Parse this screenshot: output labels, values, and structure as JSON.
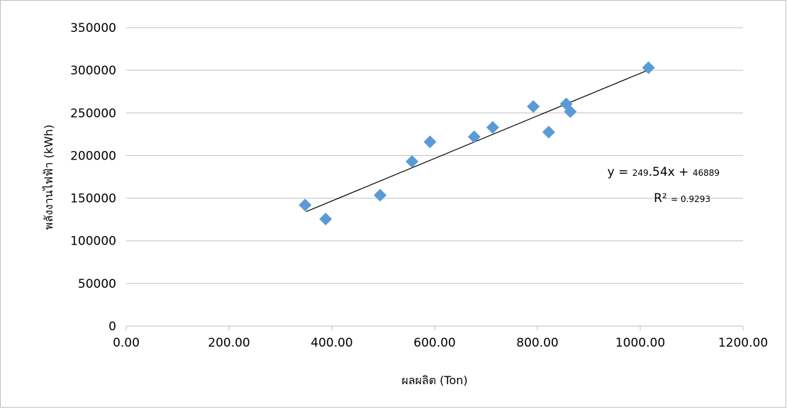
{
  "chart_data": {
    "type": "scatter",
    "xlabel": "ผลผลิต (Ton)",
    "ylabel": "พลังงานไฟฟ้า (kWh)",
    "xlim": [
      0,
      1200
    ],
    "ylim": [
      0,
      350000
    ],
    "x_ticks": [
      "0.00",
      "200.00",
      "400.00",
      "600.00",
      "800.00",
      "1000.00",
      "1200.00"
    ],
    "y_ticks": [
      "0",
      "50000",
      "100000",
      "150000",
      "200000",
      "250000",
      "300000",
      "350000"
    ],
    "grid": "horizontal",
    "legend": "none",
    "marker": "diamond",
    "marker_color": "#5b9bd5",
    "trendline_color": "#000000",
    "points": [
      {
        "x": 348,
        "y": 142000
      },
      {
        "x": 388,
        "y": 125500
      },
      {
        "x": 494,
        "y": 153500
      },
      {
        "x": 556,
        "y": 193000
      },
      {
        "x": 591,
        "y": 216000
      },
      {
        "x": 677,
        "y": 222000
      },
      {
        "x": 713,
        "y": 233000
      },
      {
        "x": 792,
        "y": 257500
      },
      {
        "x": 822,
        "y": 227500
      },
      {
        "x": 856,
        "y": 260500
      },
      {
        "x": 864,
        "y": 251500
      },
      {
        "x": 1016,
        "y": 303000
      }
    ],
    "trendline": {
      "slope": 249.54,
      "intercept": 46889,
      "x_range": [
        350,
        1016
      ],
      "r_squared": 0.9293,
      "equation": {
        "y_prefix": "y = ",
        "slope_int": "249",
        "slope_dec": ".54x + ",
        "intercept": "46889",
        "r2_label": "R² ",
        "r2_value": "= 0.9293"
      }
    }
  }
}
